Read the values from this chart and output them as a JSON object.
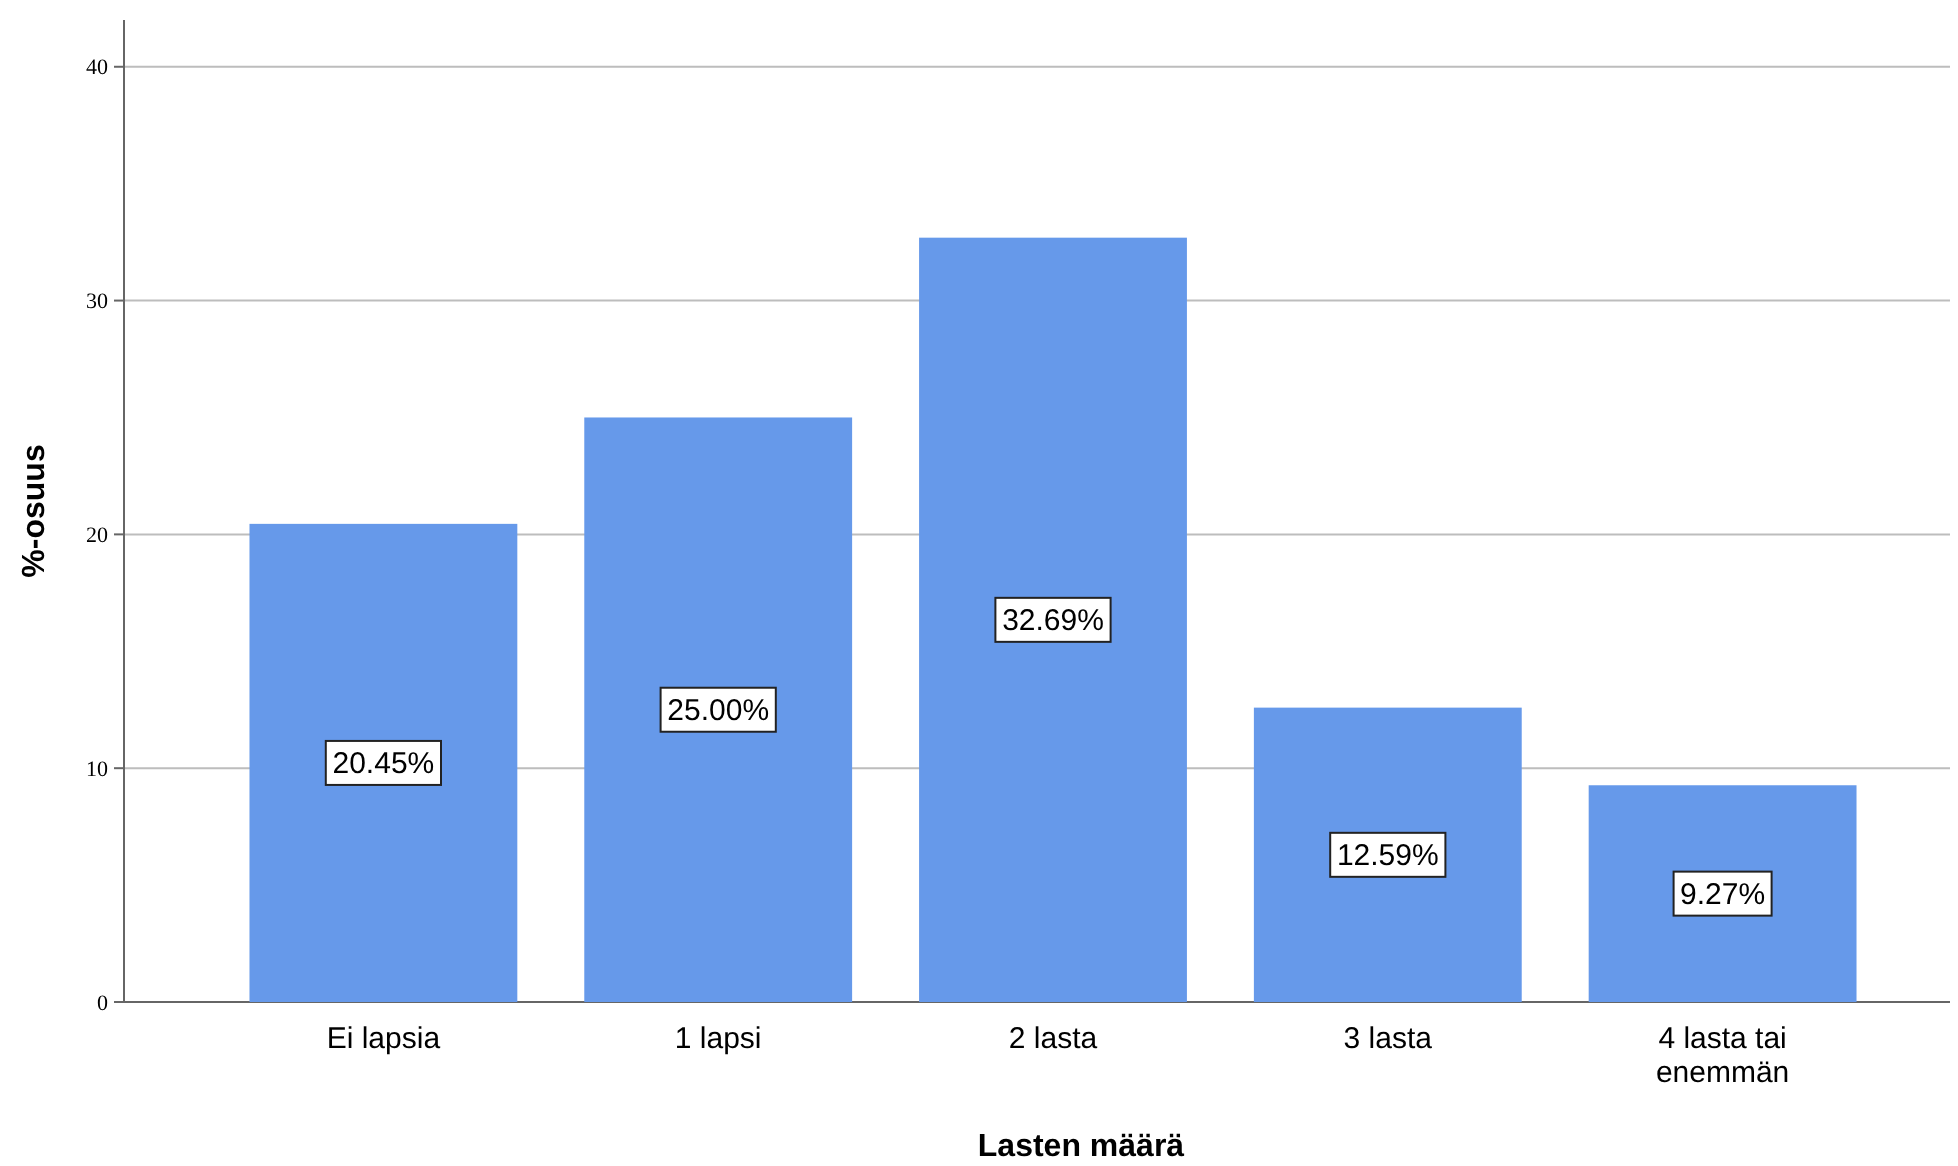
{
  "chart_data": {
    "type": "bar",
    "xlabel": "Lasten määrä",
    "ylabel": "%-osuus",
    "categories": [
      "Ei lapsia",
      "1 lapsi",
      "2 lasta",
      "3 lasta",
      "4 lasta tai enemmän"
    ],
    "values": [
      20.45,
      25.0,
      32.69,
      12.59,
      9.27
    ],
    "value_labels": [
      "20.45%",
      "25.00%",
      "32.69%",
      "12.59%",
      "9.27%"
    ],
    "color": "#6699ea",
    "ylim": [
      0,
      42
    ],
    "yticks": [
      0,
      10,
      20,
      30,
      40
    ],
    "grid": "y"
  }
}
